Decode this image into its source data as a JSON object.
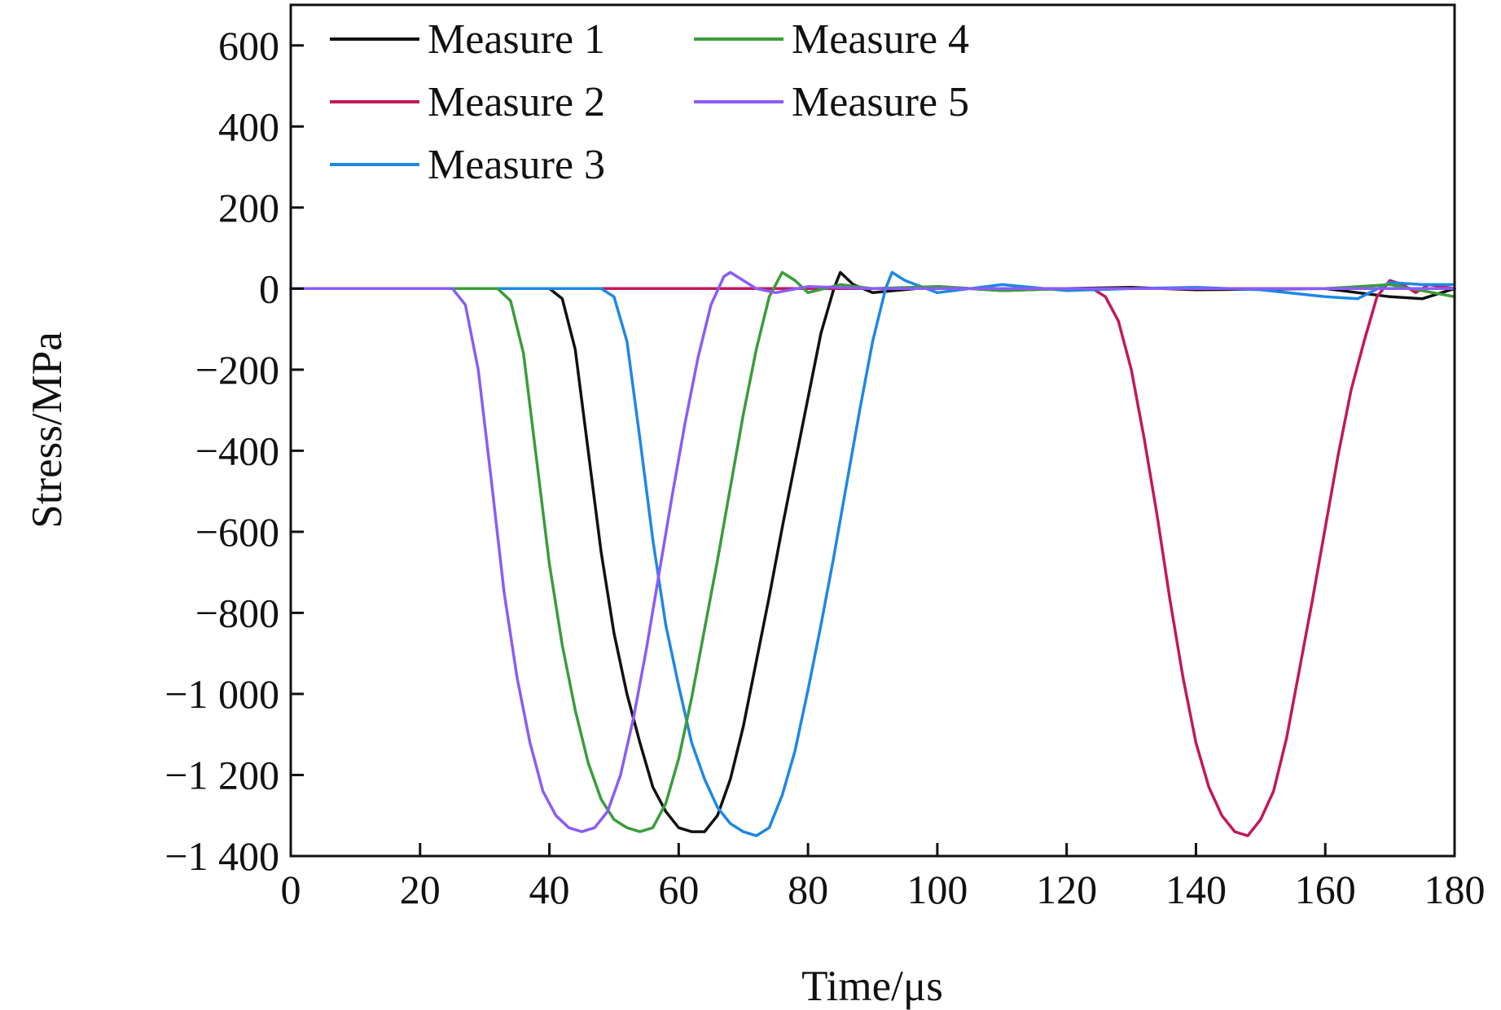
{
  "chart_data": {
    "type": "line",
    "title": "",
    "xlabel": "Time/μs",
    "ylabel": "Stress/MPa",
    "xlim": [
      0,
      180
    ],
    "ylim": [
      -1400,
      700
    ],
    "xticks": [
      0,
      20,
      40,
      60,
      80,
      100,
      120,
      140,
      160,
      180
    ],
    "xtick_labels": [
      "0",
      "20",
      "40",
      "60",
      "80",
      "100",
      "120",
      "140",
      "160",
      "180"
    ],
    "yticks": [
      600,
      400,
      200,
      0,
      -200,
      -400,
      -600,
      -800,
      -1000,
      -1200,
      -1400
    ],
    "ytick_labels": [
      "600",
      "400",
      "200",
      "0",
      "−200",
      "−400",
      "−600",
      "−800",
      "−1 000",
      "−1 200",
      "−1 400"
    ],
    "grid": false,
    "legend_position": "top-left",
    "series": [
      {
        "name": "Measure 1",
        "color": "#111111",
        "x": [
          0,
          40,
          42,
          44,
          46,
          48,
          50,
          52,
          54,
          56,
          58,
          60,
          62,
          64,
          66,
          68,
          70,
          72,
          74,
          76,
          78,
          80,
          82,
          84,
          85,
          87,
          90,
          100,
          110,
          120,
          130,
          140,
          160,
          165,
          170,
          175,
          180
        ],
        "y": [
          0,
          0,
          -25,
          -150,
          -400,
          -650,
          -850,
          -1000,
          -1120,
          -1230,
          -1290,
          -1330,
          -1340,
          -1340,
          -1300,
          -1210,
          -1080,
          -920,
          -760,
          -590,
          -430,
          -270,
          -110,
          0,
          40,
          10,
          -10,
          5,
          -5,
          0,
          3,
          -3,
          0,
          -10,
          -20,
          -25,
          0
        ]
      },
      {
        "name": "Measure 2",
        "color": "#c2185b",
        "x": [
          0,
          124,
          126,
          128,
          130,
          132,
          134,
          136,
          138,
          140,
          142,
          144,
          146,
          148,
          150,
          152,
          154,
          156,
          158,
          160,
          162,
          164,
          166,
          168,
          170,
          172,
          174,
          176,
          180
        ],
        "y": [
          0,
          0,
          -20,
          -80,
          -200,
          -370,
          -560,
          -770,
          -960,
          -1120,
          -1230,
          -1300,
          -1340,
          -1350,
          -1310,
          -1240,
          -1110,
          -940,
          -770,
          -590,
          -410,
          -250,
          -130,
          -20,
          20,
          10,
          -10,
          10,
          0
        ]
      },
      {
        "name": "Measure 3",
        "color": "#1e88e5",
        "x": [
          0,
          48,
          50,
          52,
          54,
          56,
          58,
          60,
          62,
          64,
          66,
          68,
          70,
          72,
          74,
          76,
          78,
          80,
          82,
          84,
          86,
          88,
          90,
          92,
          93,
          95,
          100,
          110,
          120,
          130,
          140,
          150,
          160,
          165,
          170,
          175,
          180
        ],
        "y": [
          0,
          0,
          -20,
          -130,
          -370,
          -620,
          -830,
          -980,
          -1120,
          -1210,
          -1280,
          -1320,
          -1340,
          -1350,
          -1330,
          -1250,
          -1140,
          -990,
          -830,
          -660,
          -480,
          -300,
          -130,
          0,
          40,
          20,
          -10,
          10,
          -5,
          0,
          3,
          -3,
          -20,
          -25,
          15,
          10,
          10
        ]
      },
      {
        "name": "Measure 4",
        "color": "#3a9d3a",
        "x": [
          0,
          32,
          34,
          36,
          38,
          40,
          42,
          44,
          46,
          48,
          50,
          52,
          54,
          56,
          58,
          60,
          62,
          64,
          66,
          68,
          70,
          72,
          74,
          76,
          78,
          80,
          85,
          90,
          100,
          110,
          120,
          140,
          160,
          170,
          180
        ],
        "y": [
          0,
          0,
          -30,
          -160,
          -420,
          -680,
          -880,
          -1040,
          -1170,
          -1260,
          -1310,
          -1330,
          -1340,
          -1330,
          -1270,
          -1160,
          -1010,
          -840,
          -670,
          -490,
          -310,
          -150,
          -20,
          40,
          20,
          -10,
          10,
          0,
          5,
          -5,
          0,
          0,
          0,
          10,
          -20
        ]
      },
      {
        "name": "Measure 5",
        "color": "#8b5cf6",
        "x": [
          0,
          25,
          27,
          29,
          31,
          33,
          35,
          37,
          39,
          41,
          43,
          45,
          47,
          49,
          51,
          53,
          55,
          57,
          59,
          61,
          63,
          65,
          67,
          68,
          70,
          72,
          75,
          80,
          90,
          100,
          120,
          140,
          160,
          180
        ],
        "y": [
          0,
          0,
          -40,
          -200,
          -470,
          -750,
          -960,
          -1120,
          -1240,
          -1300,
          -1330,
          -1340,
          -1330,
          -1290,
          -1200,
          -1060,
          -890,
          -700,
          -510,
          -330,
          -170,
          -40,
          30,
          40,
          20,
          0,
          -10,
          5,
          0,
          0,
          0,
          0,
          0,
          0
        ]
      }
    ]
  }
}
